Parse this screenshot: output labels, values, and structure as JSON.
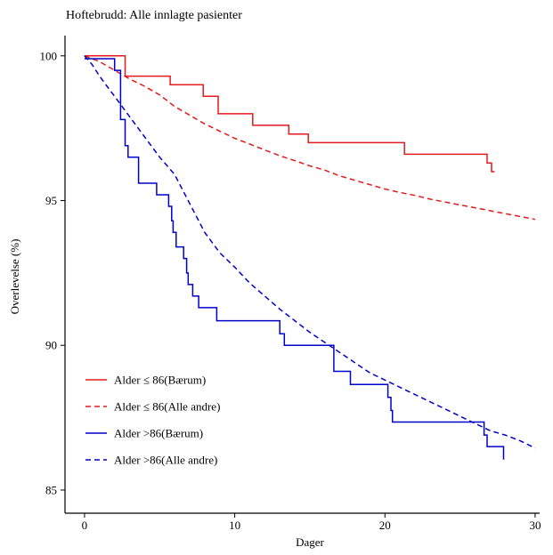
{
  "chart_data": {
    "type": "line",
    "title": "Hoftebrudd: Alle innlagte pasienter",
    "xlabel": "Dager",
    "ylabel": "Overlevelse (%)",
    "xlim": [
      -1.3,
      30.3
    ],
    "ylim": [
      84.2,
      100.7
    ],
    "xticks": [
      0,
      10,
      20,
      30
    ],
    "yticks": [
      85,
      90,
      95,
      100
    ],
    "grid": false,
    "legend_position": "bottom-left",
    "series": [
      {
        "name": "Alder ≤ 86(Bærum)",
        "color": "#e41a1c",
        "dash": "solid",
        "step": true,
        "x": [
          0,
          2.7,
          5.7,
          7.9,
          8.9,
          11.2,
          13.6,
          14.9,
          21.3,
          26.8,
          27.1,
          27.3
        ],
        "y": [
          100,
          99.3,
          99.0,
          98.6,
          98.0,
          97.6,
          97.3,
          97.0,
          96.6,
          96.3,
          96.0,
          96.0
        ]
      },
      {
        "name": "Alder ≤ 86(Alle andre)",
        "color": "#e41a1c",
        "dash": "dashed",
        "step": false,
        "x": [
          0,
          0.5,
          1,
          1.5,
          2,
          2.5,
          3,
          4,
          5,
          6,
          7,
          8,
          9,
          10,
          11,
          12,
          13,
          14,
          15,
          16,
          17,
          18,
          19,
          20,
          21,
          22,
          23,
          24,
          25,
          26,
          27,
          28,
          29,
          30
        ],
        "y": [
          100,
          99.9,
          99.8,
          99.65,
          99.5,
          99.35,
          99.2,
          98.95,
          98.65,
          98.25,
          97.95,
          97.65,
          97.4,
          97.15,
          96.95,
          96.75,
          96.55,
          96.38,
          96.2,
          96.05,
          95.85,
          95.7,
          95.55,
          95.4,
          95.28,
          95.18,
          95.05,
          94.95,
          94.85,
          94.75,
          94.65,
          94.55,
          94.45,
          94.35
        ]
      },
      {
        "name": "Alder >86(Bærum)",
        "color": "#0000cc",
        "dash": "solid",
        "step": true,
        "x": [
          0,
          2.0,
          2.4,
          2.7,
          2.9,
          3.6,
          4.8,
          5.6,
          5.8,
          5.9,
          6.1,
          6.6,
          6.8,
          6.9,
          7.2,
          7.6,
          8.8,
          13.0,
          13.3,
          13.6,
          16.6,
          17.7,
          20.2,
          20.4,
          20.5,
          26.6,
          26.8,
          27.3,
          27.9
        ],
        "y": [
          99.9,
          99.5,
          97.8,
          96.9,
          96.5,
          95.6,
          95.2,
          94.8,
          94.3,
          93.9,
          93.4,
          93.0,
          92.5,
          92.1,
          91.7,
          91.3,
          90.85,
          90.4,
          90.0,
          90.0,
          89.1,
          88.65,
          88.2,
          87.75,
          87.35,
          86.9,
          86.5,
          86.5,
          86.05
        ]
      },
      {
        "name": "Alder >86(Alle andre)",
        "color": "#0000cc",
        "dash": "dashed",
        "step": false,
        "x": [
          0,
          0.5,
          1,
          1.5,
          2,
          2.5,
          3,
          4,
          5,
          6,
          7,
          8,
          9,
          10,
          11,
          12,
          13,
          14,
          15,
          16,
          17,
          18,
          19,
          20,
          21,
          22,
          23,
          24,
          25,
          26,
          27,
          28,
          29,
          30
        ],
        "y": [
          100,
          99.7,
          99.3,
          98.95,
          98.6,
          98.25,
          97.9,
          97.2,
          96.5,
          95.9,
          94.9,
          93.9,
          93.2,
          92.7,
          92.15,
          91.7,
          91.25,
          90.85,
          90.45,
          90.1,
          89.75,
          89.4,
          89.05,
          88.8,
          88.55,
          88.3,
          88.05,
          87.8,
          87.55,
          87.3,
          87.05,
          86.9,
          86.7,
          86.45
        ]
      }
    ]
  }
}
